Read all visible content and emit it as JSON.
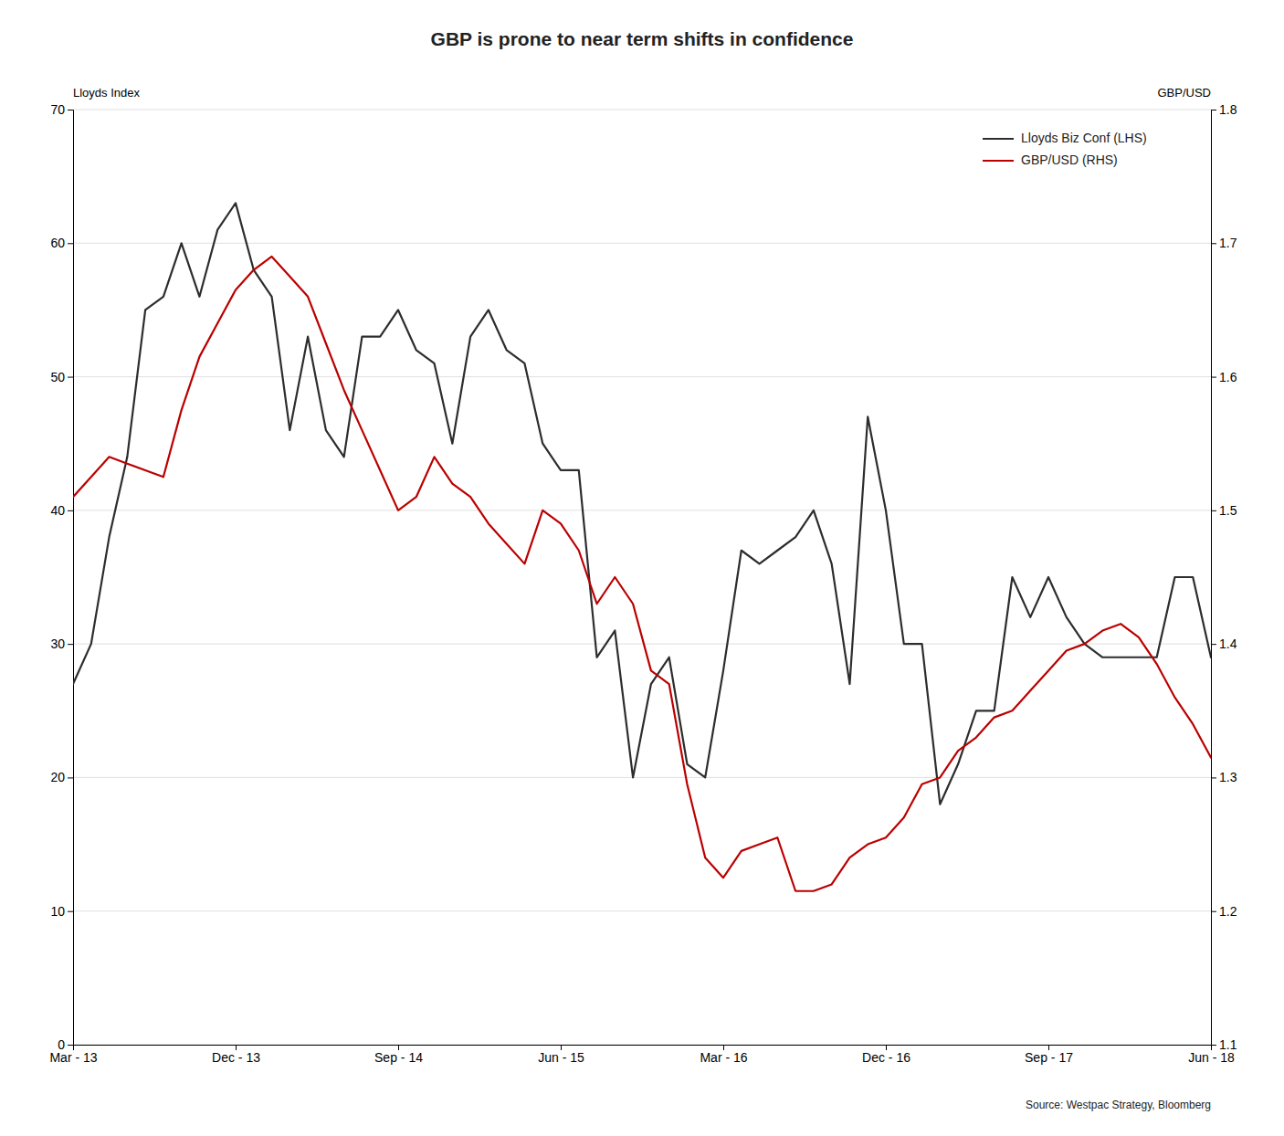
{
  "chart_data": {
    "type": "line",
    "title": "GBP is prone to near term shifts in confidence",
    "y_label": "Lloyds Index",
    "y2_label": "GBP/USD",
    "source": "Source: Westpac Strategy, Bloomberg",
    "categories": [
      "Mar - 13",
      null,
      null,
      null,
      null,
      null,
      null,
      null,
      null,
      "Dec - 13",
      null,
      null,
      null,
      null,
      null,
      null,
      null,
      null,
      "Sep - 14",
      null,
      null,
      null,
      null,
      null,
      null,
      null,
      null,
      "Jun - 15",
      null,
      null,
      null,
      null,
      null,
      null,
      null,
      null,
      "Mar - 16",
      null,
      null,
      null,
      null,
      null,
      null,
      null,
      null,
      "Dec - 16",
      null,
      null,
      null,
      null,
      null,
      null,
      null,
      null,
      "Sep - 17",
      null,
      null,
      null,
      null,
      null,
      null,
      null,
      null,
      "Jun - 18"
    ],
    "ylim": [
      0,
      70
    ],
    "yticks": [
      0,
      10,
      20,
      30,
      40,
      50,
      60,
      70
    ],
    "y2lim": [
      1.1,
      1.8
    ],
    "y2ticks": [
      1.1,
      1.2,
      1.3,
      1.4,
      1.5,
      1.6,
      1.7,
      1.8
    ],
    "grid": true,
    "legend": "top-right",
    "series": [
      {
        "name": "Lloyds Biz Conf (LHS)",
        "color": "#2d2d2d",
        "values": [
          27,
          30,
          38,
          44,
          55,
          56,
          60,
          56,
          61,
          63,
          58,
          56,
          46,
          53,
          46,
          44,
          53,
          53,
          55,
          52,
          51,
          45,
          53,
          55,
          52,
          51,
          45,
          43,
          43,
          29,
          31,
          20,
          27,
          29,
          21,
          20,
          28,
          37,
          36,
          37,
          38,
          40,
          36,
          27,
          47,
          40,
          30,
          30,
          18,
          21,
          25,
          25,
          35,
          32,
          35,
          32,
          30,
          29,
          29,
          29,
          29,
          35,
          35,
          29
        ]
      },
      {
        "name": "GBP/USD (RHS)",
        "color": "#bb0000",
        "axis": "y2",
        "values": [
          1.51,
          1.525,
          1.54,
          1.535,
          1.53,
          1.525,
          1.575,
          1.615,
          1.64,
          1.665,
          1.68,
          1.69,
          1.675,
          1.66,
          1.625,
          1.59,
          1.56,
          1.53,
          1.5,
          1.51,
          1.54,
          1.52,
          1.51,
          1.49,
          1.475,
          1.46,
          1.5,
          1.49,
          1.47,
          1.43,
          1.45,
          1.43,
          1.38,
          1.37,
          1.295,
          1.24,
          1.225,
          1.245,
          1.25,
          1.255,
          1.215,
          1.215,
          1.22,
          1.24,
          1.25,
          1.255,
          1.27,
          1.295,
          1.3,
          1.32,
          1.33,
          1.345,
          1.35,
          1.365,
          1.38,
          1.395,
          1.4,
          1.41,
          1.415,
          1.405,
          1.385,
          1.36,
          1.34,
          1.315
        ]
      }
    ]
  }
}
